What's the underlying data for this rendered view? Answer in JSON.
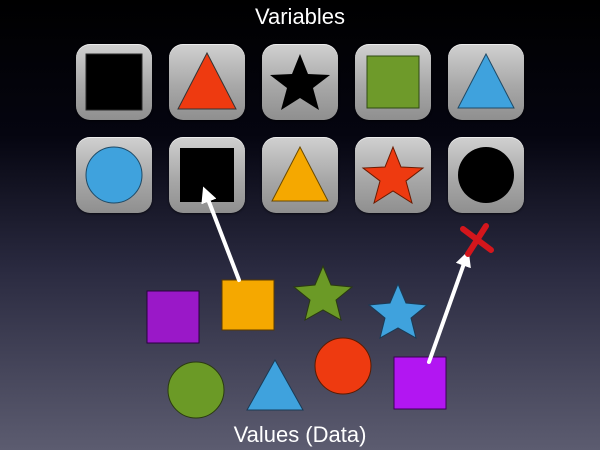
{
  "header": {
    "title": "Variables"
  },
  "footer": {
    "title": "Values (Data)"
  },
  "colors": {
    "black": "#000000",
    "red": "#ee3a10",
    "green": "#6e9a2a",
    "blue": "#3fa2dd",
    "orange": "#f5a800",
    "purple": "#9a18c8",
    "violet": "#b216f2",
    "olive": "#6b9a26",
    "arrow": "#ffffff",
    "x_mark": "#d4161c"
  },
  "variables": [
    {
      "shape": "square",
      "color": "black"
    },
    {
      "shape": "triangle",
      "color": "red"
    },
    {
      "shape": "star",
      "color": "black"
    },
    {
      "shape": "square",
      "color": "green"
    },
    {
      "shape": "triangle",
      "color": "blue"
    },
    {
      "shape": "circle",
      "color": "blue"
    },
    {
      "shape": "square",
      "color": "black"
    },
    {
      "shape": "triangle",
      "color": "orange"
    },
    {
      "shape": "star",
      "color": "red"
    },
    {
      "shape": "circle",
      "color": "black"
    }
  ],
  "values": [
    {
      "shape": "square",
      "color": "purple"
    },
    {
      "shape": "square",
      "color": "orange"
    },
    {
      "shape": "star",
      "color": "olive"
    },
    {
      "shape": "star",
      "color": "blue"
    },
    {
      "shape": "circle",
      "color": "olive"
    },
    {
      "shape": "triangle",
      "color": "blue"
    },
    {
      "shape": "circle",
      "color": "red"
    },
    {
      "shape": "square",
      "color": "violet"
    }
  ],
  "links": [
    {
      "from": "value-square-orange",
      "to": "variable-square-black-row2",
      "compatible": true
    },
    {
      "from": "value-square-violet",
      "to": "x-mark",
      "compatible": false
    }
  ]
}
